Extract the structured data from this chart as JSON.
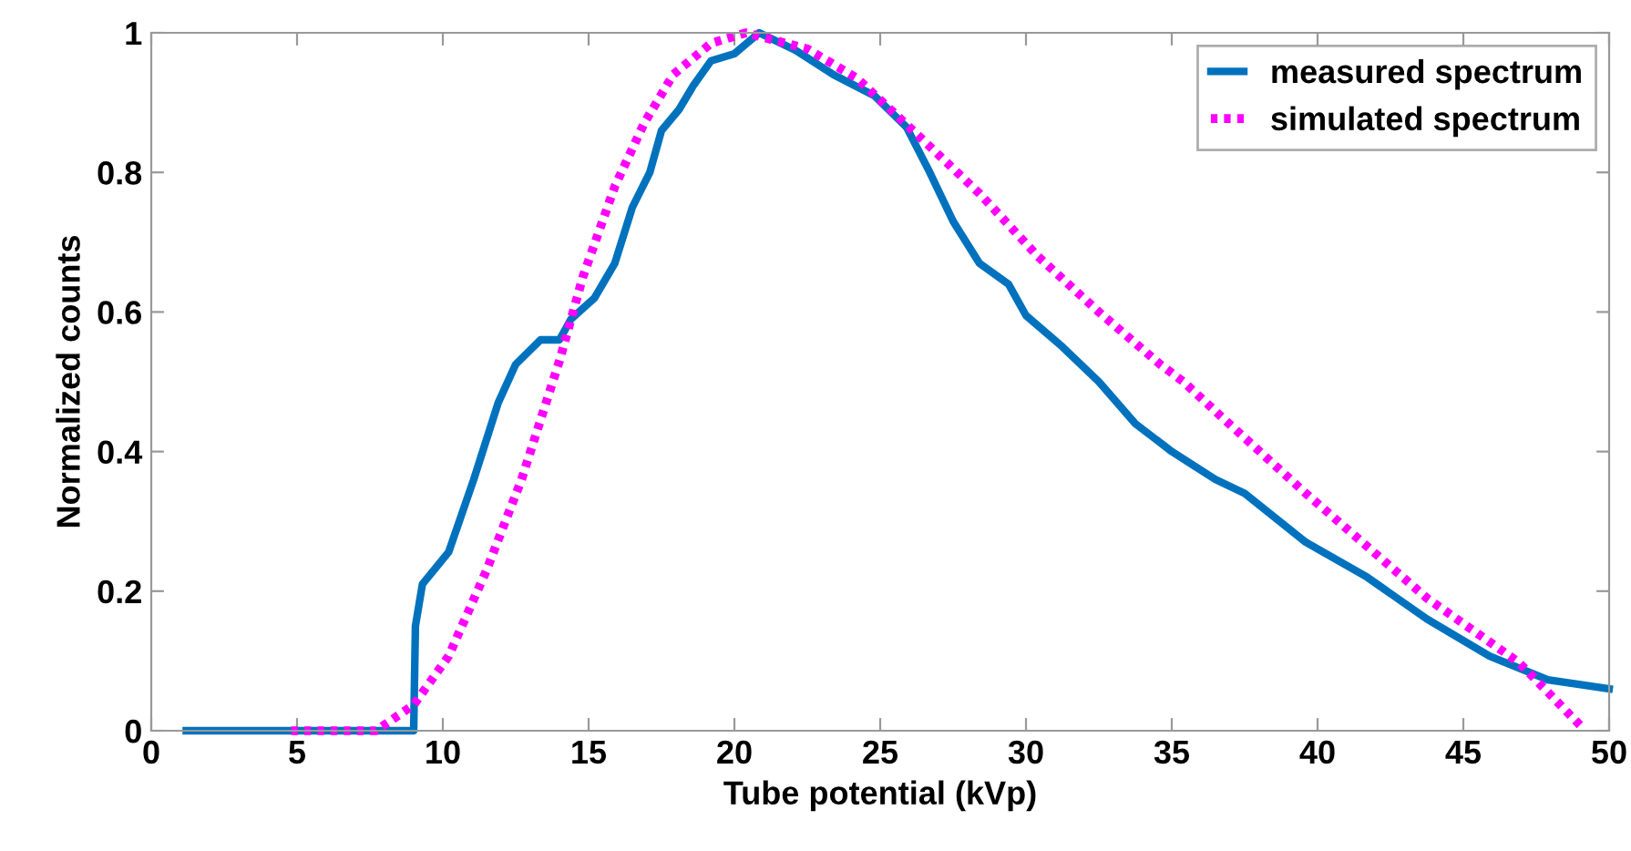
{
  "chart_data": {
    "type": "line",
    "xlabel": "Tube potential (kVp)",
    "ylabel": "Normalized counts",
    "xlim": [
      0,
      50
    ],
    "xticks": [
      0,
      5,
      10,
      15,
      20,
      25,
      30,
      35,
      40,
      45,
      50
    ],
    "ylim": [
      0,
      1
    ],
    "yticks": [
      0,
      0.2,
      0.4,
      0.6,
      0.8,
      1
    ],
    "grid": false,
    "legend": "top right",
    "marker": "none",
    "series": [
      {
        "name": "measured spectrum",
        "color": "#0072bd",
        "line_style": "solid",
        "x": [
          1.2,
          9.0,
          9.06,
          9.3,
          10.2,
          11.06,
          11.9,
          12.5,
          13.35,
          14.0,
          14.4,
          15.2,
          15.9,
          16.5,
          17.1,
          17.5,
          18.1,
          18.6,
          19.2,
          20.0,
          20.85,
          22.1,
          23.4,
          24.8,
          25.9,
          26.7,
          27.5,
          28.4,
          29.4,
          30.0,
          31.25,
          32.5,
          33.75,
          35.0,
          36.5,
          37.5,
          39.6,
          41.7,
          43.75,
          45.9,
          47.9,
          50.0
        ],
        "values": [
          0,
          0,
          0.15,
          0.21,
          0.256,
          0.36,
          0.47,
          0.525,
          0.56,
          0.56,
          0.59,
          0.62,
          0.67,
          0.75,
          0.8,
          0.86,
          0.89,
          0.925,
          0.96,
          0.97,
          1.0,
          0.975,
          0.94,
          0.91,
          0.865,
          0.8,
          0.73,
          0.67,
          0.64,
          0.595,
          0.55,
          0.5,
          0.44,
          0.4,
          0.36,
          0.34,
          0.27,
          0.22,
          0.16,
          0.107,
          0.073,
          0.06
        ]
      },
      {
        "name": "simulated spectrum",
        "color": "#ff00ff",
        "line_style": "dotted",
        "x": [
          4.8,
          7.7,
          9.0,
          10.2,
          11.5,
          12.7,
          14.0,
          14.8,
          15.9,
          16.9,
          17.9,
          19.2,
          20.4,
          22.5,
          24.2,
          26.25,
          28.4,
          30.4,
          32.5,
          34.6,
          35.4,
          36.7,
          39.6,
          43.75,
          46.9,
          49.0
        ],
        "values": [
          0,
          0,
          0.037,
          0.107,
          0.23,
          0.36,
          0.53,
          0.65,
          0.78,
          0.87,
          0.94,
          0.985,
          1.0,
          0.977,
          0.935,
          0.855,
          0.77,
          0.68,
          0.6,
          0.525,
          0.5,
          0.45,
          0.34,
          0.19,
          0.098,
          0.008
        ]
      }
    ]
  }
}
